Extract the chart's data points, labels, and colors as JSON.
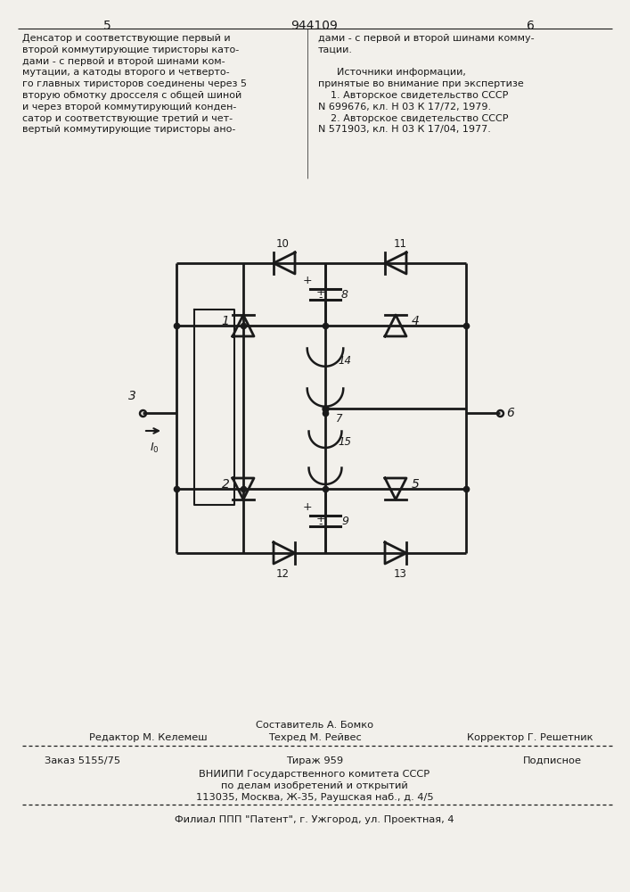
{
  "page_number_left": "5",
  "page_number_center": "944109",
  "page_number_right": "6",
  "text_left": "Денсатор и соответствующие первый и\nвторой коммутирующие тиристоры като-\nдами - с первой и второй шинами ком-\nмутации, а катоды второго и четверто-\nго главных тиристоров соединены через 5\nвторую обмотку дросселя с общей шиной\nи через второй коммутирующий конден-\nсатор и соответствующие третий и чет-\nвертый коммутирующие тиристоры ано-",
  "text_right": "дами - с первой и второй шинами коммy-\nтации.\n\n      Источники информации,\nпринятые во внимание при экспертизе\n    1. Авторское свидетельство СССР\nN 699676, кл. Н 03 К 17/72, 1979.\n    2. Авторское свидетельство СССР\nN 571903, кл. Н 03 К 17/04, 1977.",
  "footer_composer": "Составитель А. Бомко",
  "footer_editor": "Редактор М. Келемеш",
  "footer_tech": "Техред М. Рейвес",
  "footer_corrector": "Корректор Г. Решетник",
  "footer_order": "Заказ 5155/75",
  "footer_print": "Тираж 959",
  "footer_sub": "Подписное",
  "footer_org": "ВНИИПИ Государственного комитета СССР",
  "footer_dept": "по делам изобретений и открытий",
  "footer_addr": "113035, Москва, Ж-35, Раушская наб., д. 4/5",
  "footer_branch": "Филиал ППП \"Патент\", г. Ужгород, ул. Проектная, 4",
  "bg_color": "#f2f0eb",
  "line_color": "#1a1a1a",
  "text_color": "#1a1a1a"
}
